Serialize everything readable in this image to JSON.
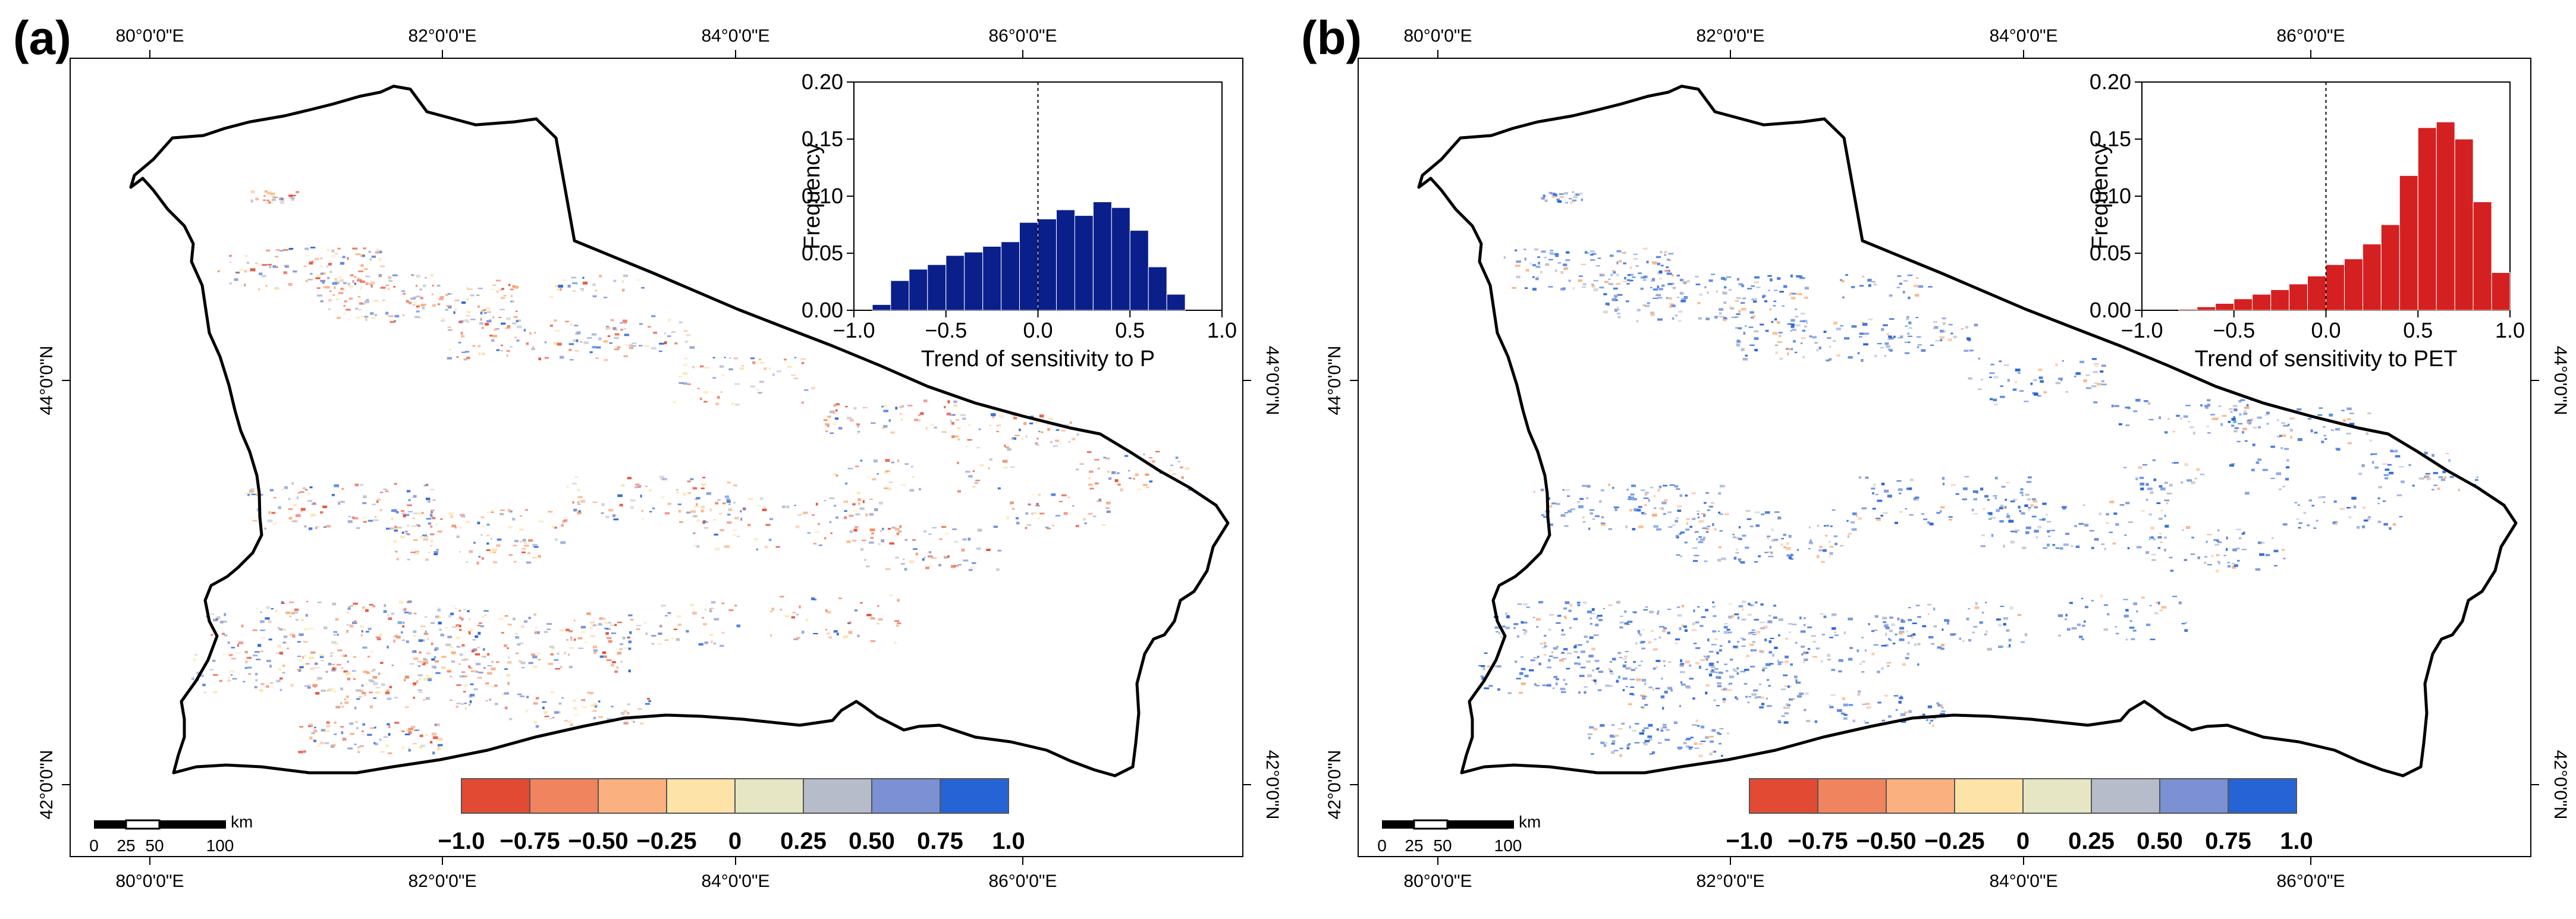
{
  "panels": [
    {
      "label": "(a)",
      "top_ticks": [
        "80°0'0\"E",
        "82°0'0\"E",
        "84°0'0\"E",
        "86°0'0\"E"
      ],
      "bottom_ticks": [
        "80°0'0\"E",
        "82°0'0\"E",
        "84°0'0\"E",
        "86°0'0\"E"
      ],
      "left_ticks": [
        "44°0'0\"N",
        "42°0'0\"N"
      ],
      "right_ticks": [
        "44°0'0\"N",
        "42°0'0\"N"
      ],
      "scale_bar": {
        "unit": "km",
        "labels": [
          "0",
          "25",
          "50",
          "100"
        ]
      },
      "legend": {
        "labels": [
          "−1.0",
          "−0.75",
          "−0.50",
          "−0.25",
          "0",
          "0.25",
          "0.50",
          "0.75",
          "1.0"
        ],
        "colors": [
          "#e34a33",
          "#f0845f",
          "#fbb07f",
          "#fde3a7",
          "#e6e6c4",
          "#b7bccb",
          "#7b91d3",
          "#2664d6"
        ]
      },
      "pixel_palette": [
        "#2664d6",
        "#7b91d3",
        "#b7bccb",
        "#fbb07f",
        "#f0845f",
        "#e34a33",
        "#fde3a7"
      ],
      "chart_data": {
        "type": "bar",
        "title": "",
        "xlabel": "Trend of sensitivity to P",
        "ylabel": "Frequency",
        "xlim": [
          -1.0,
          1.0
        ],
        "ylim": [
          0,
          0.2
        ],
        "xticks": [
          "−1.0",
          "−0.5",
          "0.0",
          "0.5",
          "1.0"
        ],
        "yticks": [
          "0.00",
          "0.05",
          "0.10",
          "0.15",
          "0.20"
        ],
        "bin_start": -0.9,
        "bin_width": 0.1,
        "values": [
          0.005,
          0.026,
          0.036,
          0.04,
          0.048,
          0.051,
          0.056,
          0.06,
          0.077,
          0.08,
          0.088,
          0.083,
          0.095,
          0.09,
          0.07,
          0.038,
          0.014
        ],
        "bar_color": "#0a1f8a",
        "reference_line_x": 0.0
      }
    },
    {
      "label": "(b)",
      "top_ticks": [
        "80°0'0\"E",
        "82°0'0\"E",
        "84°0'0\"E",
        "86°0'0\"E"
      ],
      "bottom_ticks": [
        "80°0'0\"E",
        "82°0'0\"E",
        "84°0'0\"E",
        "86°0'0\"E"
      ],
      "left_ticks": [
        "44°0'0\"N",
        "42°0'0\"N"
      ],
      "right_ticks": [
        "44°0'0\"N",
        "42°0'0\"N"
      ],
      "scale_bar": {
        "unit": "km",
        "labels": [
          "0",
          "25",
          "50",
          "100"
        ]
      },
      "legend": {
        "labels": [
          "−1.0",
          "−0.75",
          "−0.50",
          "−0.25",
          "0",
          "0.25",
          "0.50",
          "0.75",
          "1.0"
        ],
        "colors": [
          "#e34a33",
          "#f0845f",
          "#fbb07f",
          "#fde3a7",
          "#e6e6c4",
          "#b7bccb",
          "#7b91d3",
          "#2664d6"
        ]
      },
      "pixel_palette": [
        "#2664d6",
        "#4a79d8",
        "#7b91d3",
        "#2664d6",
        "#b7bccb",
        "#fbb07f",
        "#2664d6"
      ],
      "chart_data": {
        "type": "bar",
        "title": "",
        "xlabel": "Trend of sensitivity to PET",
        "ylabel": "Frequency",
        "xlim": [
          -1.0,
          1.0
        ],
        "ylim": [
          0,
          0.2
        ],
        "xticks": [
          "−1.0",
          "−0.5",
          "0.0",
          "0.5",
          "1.0"
        ],
        "yticks": [
          "0.00",
          "0.05",
          "0.10",
          "0.15",
          "0.20"
        ],
        "bin_start": -0.8,
        "bin_width": 0.1,
        "values": [
          0.001,
          0.003,
          0.006,
          0.01,
          0.014,
          0.018,
          0.023,
          0.03,
          0.04,
          0.045,
          0.058,
          0.075,
          0.118,
          0.16,
          0.165,
          0.15,
          0.095,
          0.033
        ],
        "bar_color": "#d42020",
        "reference_line_x": 0.0
      }
    }
  ]
}
